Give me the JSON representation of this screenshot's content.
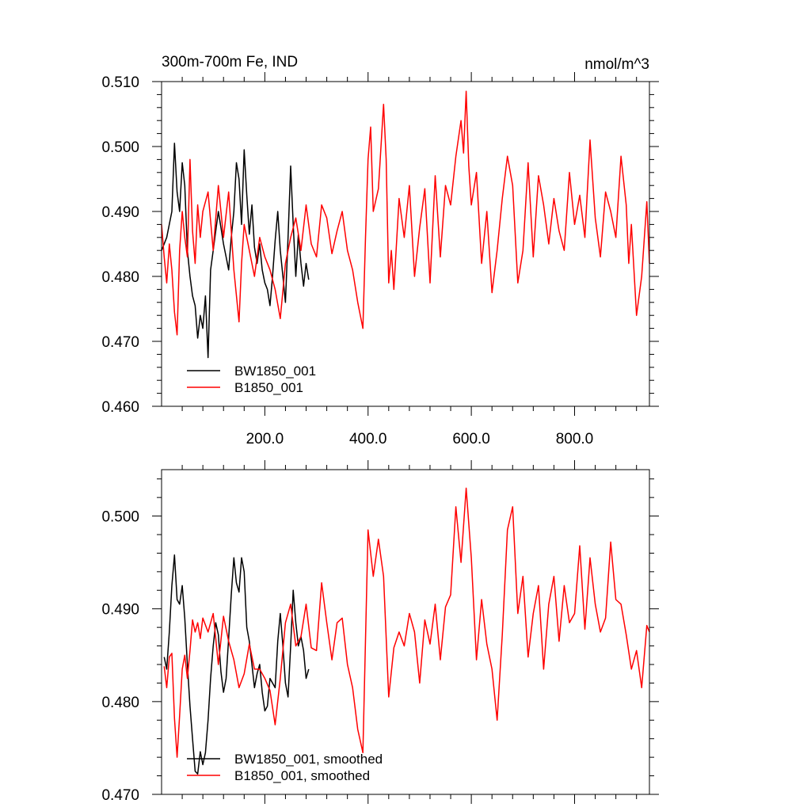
{
  "chart_data": [
    {
      "type": "line",
      "title": "300m-700m Fe, IND",
      "units": "nmol/m^3",
      "xlabel": "",
      "ylabel": "",
      "xlim": [
        0,
        945
      ],
      "ylim": [
        0.46,
        0.51
      ],
      "xticks": [
        "200.0",
        "400.0",
        "600.0",
        "800.0"
      ],
      "yticks": [
        "0.460",
        "0.470",
        "0.480",
        "0.490",
        "0.500",
        "0.510"
      ],
      "legend": "bottom-left",
      "series": [
        {
          "name": "BW1850_001",
          "color": "#000000",
          "x": [
            0,
            10,
            20,
            25,
            30,
            35,
            40,
            45,
            50,
            55,
            60,
            65,
            70,
            75,
            80,
            85,
            90,
            95,
            100,
            105,
            110,
            115,
            120,
            125,
            130,
            135,
            140,
            145,
            150,
            155,
            160,
            165,
            170,
            175,
            180,
            185,
            190,
            195,
            200,
            205,
            210,
            215,
            220,
            225,
            230,
            235,
            240,
            245,
            250,
            255,
            260,
            265,
            270,
            275,
            280,
            285
          ],
          "values": [
            0.484,
            0.486,
            0.49,
            0.5005,
            0.493,
            0.49,
            0.4975,
            0.494,
            0.484,
            0.48,
            0.477,
            0.4755,
            0.4705,
            0.474,
            0.472,
            0.477,
            0.4675,
            0.481,
            0.484,
            0.487,
            0.49,
            0.4875,
            0.485,
            0.483,
            0.481,
            0.486,
            0.49,
            0.4975,
            0.495,
            0.488,
            0.4995,
            0.4925,
            0.4865,
            0.491,
            0.4845,
            0.482,
            0.485,
            0.481,
            0.479,
            0.478,
            0.4755,
            0.48,
            0.4855,
            0.49,
            0.484,
            0.48,
            0.476,
            0.486,
            0.497,
            0.488,
            0.48,
            0.4865,
            0.482,
            0.4785,
            0.482,
            0.4795
          ]
        },
        {
          "name": "B1850_001",
          "color": "#ff0000",
          "x": [
            0,
            5,
            10,
            15,
            20,
            25,
            30,
            35,
            40,
            45,
            50,
            55,
            60,
            65,
            70,
            75,
            80,
            90,
            100,
            110,
            120,
            130,
            140,
            150,
            155,
            160,
            170,
            180,
            190,
            200,
            210,
            220,
            230,
            240,
            250,
            260,
            270,
            280,
            290,
            300,
            310,
            320,
            330,
            340,
            350,
            360,
            370,
            380,
            390,
            395,
            400,
            405,
            410,
            420,
            430,
            435,
            440,
            445,
            450,
            460,
            470,
            480,
            490,
            500,
            510,
            520,
            530,
            540,
            550,
            560,
            570,
            580,
            585,
            590,
            595,
            600,
            610,
            620,
            630,
            640,
            650,
            660,
            670,
            680,
            690,
            700,
            710,
            720,
            730,
            740,
            750,
            760,
            770,
            780,
            790,
            800,
            810,
            820,
            830,
            840,
            850,
            860,
            870,
            880,
            890,
            900,
            905,
            910,
            920,
            930,
            940,
            945
          ],
          "values": [
            0.488,
            0.483,
            0.479,
            0.485,
            0.481,
            0.4745,
            0.471,
            0.484,
            0.49,
            0.486,
            0.483,
            0.498,
            0.487,
            0.482,
            0.491,
            0.486,
            0.49,
            0.493,
            0.484,
            0.494,
            0.486,
            0.493,
            0.481,
            0.473,
            0.482,
            0.488,
            0.484,
            0.48,
            0.486,
            0.483,
            0.481,
            0.478,
            0.4735,
            0.482,
            0.486,
            0.489,
            0.484,
            0.491,
            0.485,
            0.483,
            0.491,
            0.489,
            0.4835,
            0.487,
            0.49,
            0.484,
            0.481,
            0.476,
            0.472,
            0.486,
            0.498,
            0.503,
            0.49,
            0.4935,
            0.5065,
            0.498,
            0.479,
            0.484,
            0.478,
            0.492,
            0.486,
            0.494,
            0.48,
            0.4875,
            0.4935,
            0.479,
            0.4955,
            0.483,
            0.494,
            0.491,
            0.4985,
            0.504,
            0.499,
            0.5085,
            0.497,
            0.491,
            0.496,
            0.482,
            0.49,
            0.4775,
            0.484,
            0.492,
            0.4985,
            0.494,
            0.479,
            0.484,
            0.4975,
            0.483,
            0.4955,
            0.491,
            0.485,
            0.492,
            0.487,
            0.484,
            0.496,
            0.488,
            0.4925,
            0.486,
            0.501,
            0.489,
            0.483,
            0.493,
            0.49,
            0.486,
            0.4985,
            0.491,
            0.482,
            0.488,
            0.474,
            0.48,
            0.4915,
            0.482
          ]
        }
      ]
    },
    {
      "type": "line",
      "title": "",
      "xlabel": "",
      "ylabel": "",
      "xlim": [
        0,
        945
      ],
      "ylim": [
        0.47,
        0.505
      ],
      "xticks": [],
      "yticks": [
        "0.470",
        "0.480",
        "0.490",
        "0.500"
      ],
      "legend": "bottom-left",
      "series": [
        {
          "name": "BW1850_001, smoothed",
          "color": "#000000",
          "x": [
            5,
            10,
            15,
            20,
            25,
            30,
            35,
            40,
            45,
            50,
            55,
            60,
            65,
            70,
            75,
            80,
            85,
            90,
            95,
            100,
            105,
            110,
            115,
            120,
            125,
            130,
            135,
            140,
            145,
            150,
            155,
            160,
            165,
            170,
            175,
            180,
            185,
            190,
            195,
            200,
            205,
            210,
            215,
            220,
            225,
            230,
            235,
            240,
            245,
            250,
            255,
            260,
            265,
            270,
            275,
            280,
            285
          ],
          "values": [
            0.4848,
            0.4835,
            0.4875,
            0.4925,
            0.4958,
            0.491,
            0.4905,
            0.4925,
            0.489,
            0.484,
            0.4795,
            0.476,
            0.4725,
            0.4722,
            0.4746,
            0.4732,
            0.4745,
            0.478,
            0.4825,
            0.486,
            0.4885,
            0.4872,
            0.4832,
            0.481,
            0.4825,
            0.4868,
            0.4915,
            0.4955,
            0.4928,
            0.4918,
            0.4955,
            0.494,
            0.488,
            0.4865,
            0.484,
            0.4815,
            0.483,
            0.484,
            0.481,
            0.479,
            0.4795,
            0.4825,
            0.482,
            0.4815,
            0.4865,
            0.4895,
            0.486,
            0.482,
            0.4805,
            0.486,
            0.492,
            0.4885,
            0.486,
            0.487,
            0.4855,
            0.4825,
            0.4835
          ]
        },
        {
          "name": "B1850_001, smoothed",
          "color": "#ff0000",
          "x": [
            5,
            10,
            15,
            20,
            25,
            30,
            35,
            40,
            45,
            50,
            55,
            60,
            65,
            70,
            75,
            80,
            90,
            100,
            110,
            120,
            130,
            140,
            150,
            160,
            170,
            180,
            190,
            200,
            210,
            220,
            230,
            240,
            250,
            260,
            270,
            280,
            290,
            300,
            310,
            320,
            330,
            340,
            350,
            360,
            370,
            380,
            390,
            400,
            410,
            420,
            430,
            440,
            450,
            460,
            470,
            480,
            490,
            500,
            510,
            520,
            530,
            540,
            550,
            560,
            570,
            580,
            590,
            600,
            610,
            620,
            630,
            640,
            650,
            660,
            670,
            680,
            690,
            700,
            710,
            720,
            730,
            740,
            750,
            760,
            770,
            780,
            790,
            800,
            810,
            820,
            830,
            840,
            850,
            860,
            870,
            880,
            890,
            900,
            910,
            920,
            930,
            940,
            945
          ],
          "values": [
            0.4838,
            0.4815,
            0.4848,
            0.4852,
            0.4782,
            0.474,
            0.4785,
            0.4835,
            0.485,
            0.4825,
            0.4855,
            0.4888,
            0.4875,
            0.4885,
            0.4868,
            0.489,
            0.4875,
            0.4895,
            0.484,
            0.4892,
            0.4865,
            0.4845,
            0.4815,
            0.483,
            0.4862,
            0.4835,
            0.4835,
            0.4825,
            0.4812,
            0.4775,
            0.4825,
            0.4885,
            0.4905,
            0.486,
            0.487,
            0.4905,
            0.4858,
            0.4855,
            0.4928,
            0.4885,
            0.4845,
            0.4885,
            0.489,
            0.484,
            0.4815,
            0.477,
            0.4745,
            0.4985,
            0.4935,
            0.4975,
            0.4935,
            0.4805,
            0.4858,
            0.4875,
            0.486,
            0.4895,
            0.4875,
            0.482,
            0.4888,
            0.4862,
            0.4905,
            0.4845,
            0.4902,
            0.4915,
            0.501,
            0.495,
            0.503,
            0.4955,
            0.4845,
            0.491,
            0.4862,
            0.4835,
            0.478,
            0.4872,
            0.4985,
            0.501,
            0.4895,
            0.4935,
            0.4848,
            0.4895,
            0.4925,
            0.4835,
            0.4905,
            0.4935,
            0.4865,
            0.4925,
            0.4885,
            0.4895,
            0.4968,
            0.4878,
            0.4955,
            0.4905,
            0.4875,
            0.489,
            0.4972,
            0.491,
            0.4905,
            0.4872,
            0.4835,
            0.4855,
            0.4815,
            0.4882,
            0.4875
          ]
        }
      ]
    }
  ]
}
